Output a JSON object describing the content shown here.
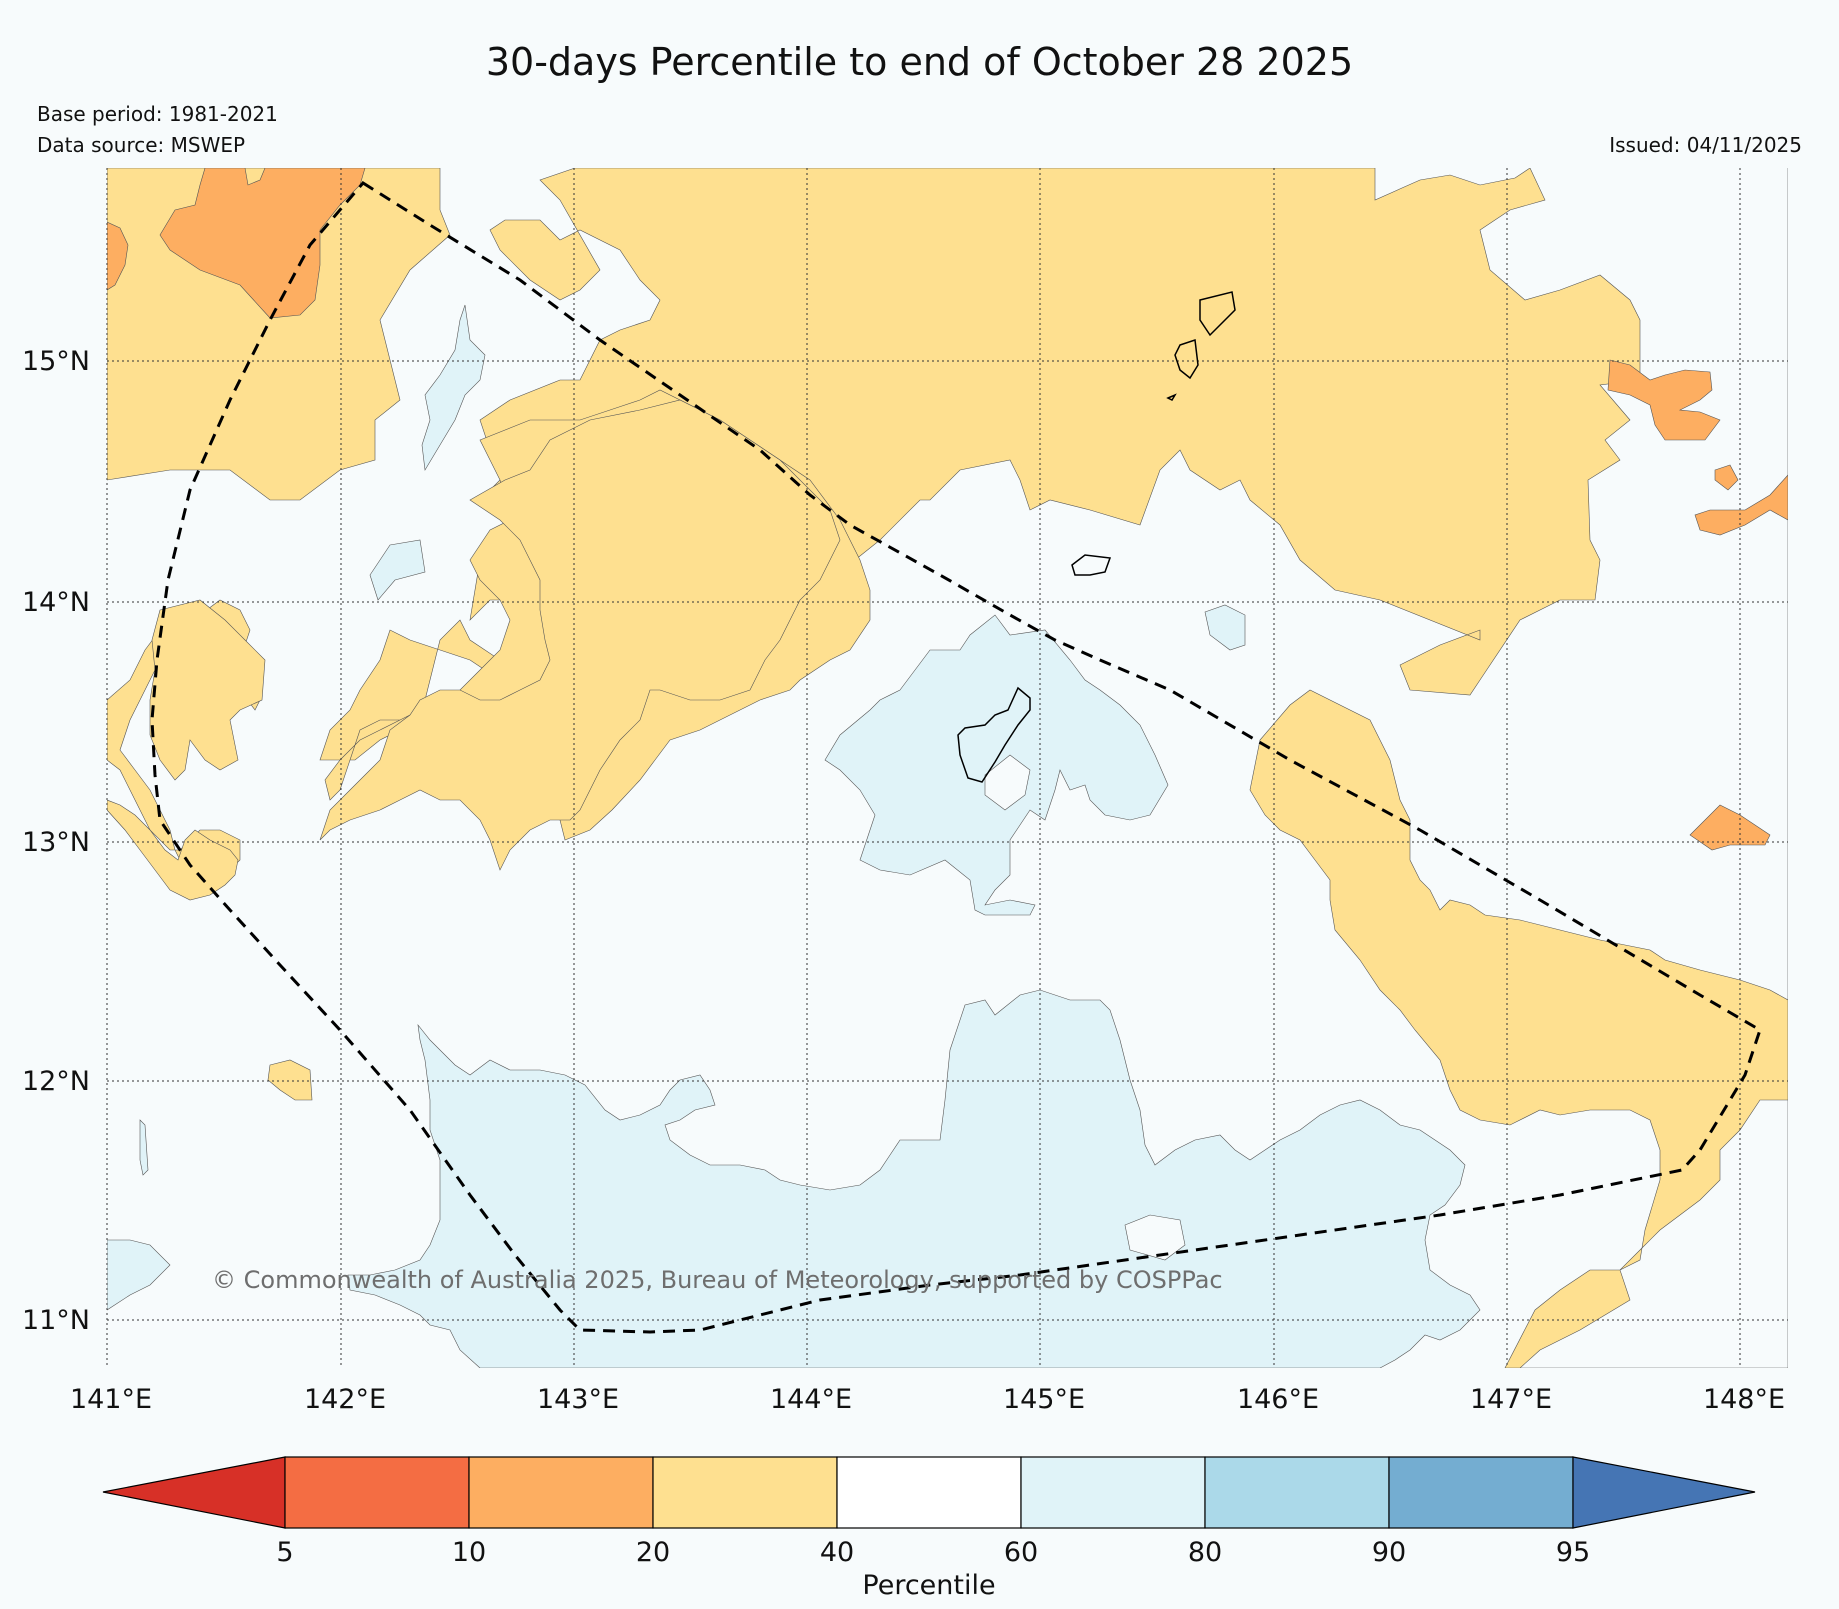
{
  "title": "30-days Percentile to end of October 28 2025",
  "base_period": "Base period: 1981-2021",
  "data_source": "Data source: MSWEP",
  "issued": "Issued: 04/11/2025",
  "copyright": "© Commonwealth of Australia 2025, Bureau of Meteorology, supported by COSPPac",
  "map": {
    "lat_labels": [
      "15°N",
      "14°N",
      "13°N",
      "12°N",
      "11°N"
    ],
    "lon_labels": [
      "141°E",
      "142°E",
      "143°E",
      "144°E",
      "145°E",
      "146°E",
      "147°E",
      "148°E"
    ],
    "gridlines": "dotted",
    "boundary": "dashed outline (EEZ)"
  },
  "colorbar": {
    "label": "Percentile",
    "ticks": [
      "5",
      "10",
      "20",
      "40",
      "60",
      "80",
      "90",
      "95"
    ],
    "colors": [
      "#d73027",
      "#f46d43",
      "#fdae61",
      "#fee090",
      "#ffffff",
      "#e0f3f8",
      "#abd9e9",
      "#74add1",
      "#4575b4"
    ]
  }
}
